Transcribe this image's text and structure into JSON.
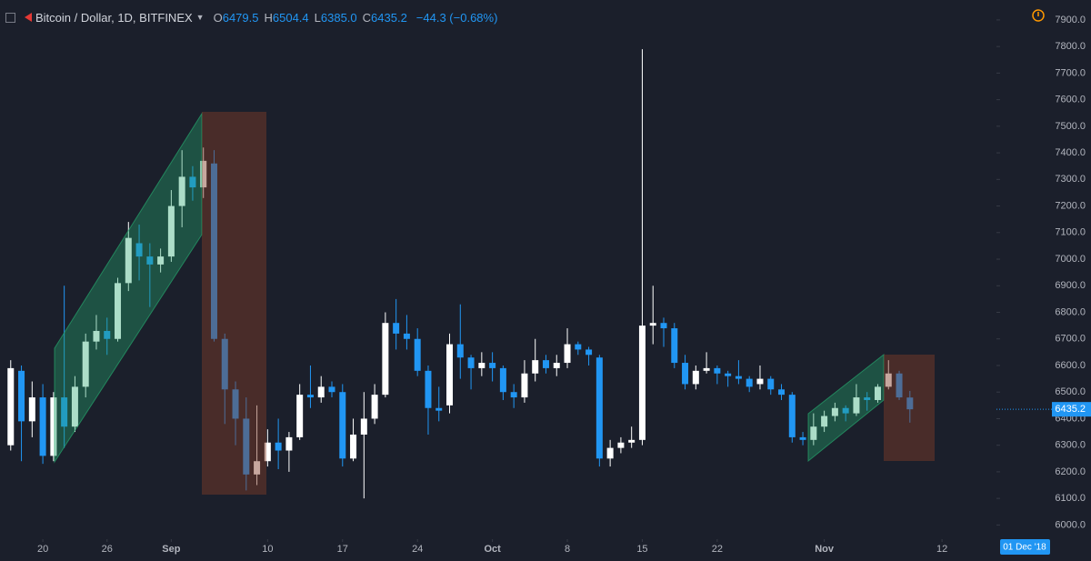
{
  "header": {
    "symbol": "Bitcoin / Dollar, 1D, BITFINEX",
    "ohlc": [
      {
        "key": "O",
        "value": "6479.5"
      },
      {
        "key": "H",
        "value": "6504.4"
      },
      {
        "key": "L",
        "value": "6385.0"
      },
      {
        "key": "C",
        "value": "6435.2"
      }
    ],
    "change": "−44.3 (−0.68%)"
  },
  "chart_data": {
    "type": "candlestick",
    "x": [
      "2018-08-17",
      "2018-08-18",
      "2018-08-19",
      "2018-08-20",
      "2018-08-21",
      "2018-08-22",
      "2018-08-23",
      "2018-08-24",
      "2018-08-25",
      "2018-08-26",
      "2018-08-27",
      "2018-08-28",
      "2018-08-29",
      "2018-08-30",
      "2018-08-31",
      "2018-09-01",
      "2018-09-02",
      "2018-09-03",
      "2018-09-04",
      "2018-09-05",
      "2018-09-06",
      "2018-09-07",
      "2018-09-08",
      "2018-09-09",
      "2018-09-10",
      "2018-09-11",
      "2018-09-12",
      "2018-09-13",
      "2018-09-14",
      "2018-09-15",
      "2018-09-16",
      "2018-09-17",
      "2018-09-18",
      "2018-09-19",
      "2018-09-20",
      "2018-09-21",
      "2018-09-22",
      "2018-09-23",
      "2018-09-24",
      "2018-09-25",
      "2018-09-26",
      "2018-09-27",
      "2018-09-28",
      "2018-09-29",
      "2018-09-30",
      "2018-10-01",
      "2018-10-02",
      "2018-10-03",
      "2018-10-04",
      "2018-10-05",
      "2018-10-06",
      "2018-10-07",
      "2018-10-08",
      "2018-10-09",
      "2018-10-10",
      "2018-10-11",
      "2018-10-12",
      "2018-10-13",
      "2018-10-14",
      "2018-10-15",
      "2018-10-16",
      "2018-10-17",
      "2018-10-18",
      "2018-10-19",
      "2018-10-20",
      "2018-10-21",
      "2018-10-22",
      "2018-10-23",
      "2018-10-24",
      "2018-10-25",
      "2018-10-26",
      "2018-10-27",
      "2018-10-28",
      "2018-10-29",
      "2018-10-30",
      "2018-10-31",
      "2018-11-01",
      "2018-11-02",
      "2018-11-03",
      "2018-11-04",
      "2018-11-05",
      "2018-11-06",
      "2018-11-07",
      "2018-11-08",
      "2018-11-09"
    ],
    "open": [
      6300,
      6580,
      6390,
      6480,
      6260,
      6480,
      6370,
      6520,
      6690,
      6730,
      6700,
      6910,
      7060,
      7010,
      6980,
      7010,
      7200,
      7310,
      7270,
      7360,
      6700,
      6510,
      6400,
      6190,
      6240,
      6310,
      6280,
      6330,
      6490,
      6480,
      6520,
      6500,
      6250,
      6340,
      6400,
      6490,
      6760,
      6720,
      6700,
      6580,
      6440,
      6450,
      6680,
      6630,
      6590,
      6610,
      6590,
      6500,
      6480,
      6570,
      6620,
      6590,
      6610,
      6680,
      6660,
      6630,
      6250,
      6290,
      6310,
      6320,
      6750,
      6760,
      6740,
      6610,
      6530,
      6580,
      6590,
      6570,
      6560,
      6550,
      6530,
      6550,
      6510,
      6490,
      6330,
      6320,
      6370,
      6410,
      6440,
      6420,
      6480,
      6470,
      6520,
      6570,
      6479.5
    ],
    "high": [
      6620,
      6600,
      6540,
      6530,
      6500,
      6900,
      6560,
      6720,
      6790,
      6780,
      6930,
      7140,
      7130,
      7060,
      7040,
      7260,
      7410,
      7350,
      7420,
      7410,
      6720,
      6540,
      6480,
      6450,
      6360,
      6400,
      6350,
      6530,
      6600,
      6560,
      6540,
      6530,
      6400,
      6500,
      6530,
      6800,
      6850,
      6790,
      6740,
      6600,
      6520,
      6720,
      6830,
      6640,
      6650,
      6650,
      6600,
      6530,
      6620,
      6700,
      6640,
      6640,
      6740,
      6690,
      6670,
      6640,
      6320,
      6330,
      6370,
      7790,
      6900,
      6780,
      6760,
      6640,
      6600,
      6650,
      6600,
      6580,
      6620,
      6560,
      6600,
      6560,
      6530,
      6500,
      6350,
      6420,
      6430,
      6460,
      6450,
      6530,
      6500,
      6530,
      6620,
      6580,
      6504.4
    ],
    "low": [
      6280,
      6240,
      6330,
      6230,
      6240,
      6290,
      6350,
      6480,
      6660,
      6640,
      6690,
      6880,
      6920,
      6820,
      6950,
      6990,
      7120,
      7220,
      7230,
      6690,
      6380,
      6300,
      6130,
      6150,
      6220,
      6210,
      6200,
      6320,
      6440,
      6460,
      6480,
      6220,
      6240,
      6100,
      6380,
      6480,
      6660,
      6660,
      6560,
      6340,
      6390,
      6420,
      6550,
      6510,
      6560,
      6540,
      6470,
      6440,
      6460,
      6540,
      6570,
      6560,
      6590,
      6640,
      6600,
      6220,
      6220,
      6270,
      6290,
      6300,
      6680,
      6670,
      6590,
      6510,
      6510,
      6570,
      6530,
      6520,
      6530,
      6500,
      6510,
      6490,
      6470,
      6310,
      6300,
      6300,
      6350,
      6390,
      6390,
      6410,
      6430,
      6460,
      6510,
      6470,
      6385.0
    ],
    "close": [
      6590,
      6390,
      6480,
      6260,
      6480,
      6370,
      6520,
      6690,
      6730,
      6700,
      6910,
      7080,
      7010,
      6980,
      7010,
      7200,
      7310,
      7270,
      7370,
      6700,
      6510,
      6400,
      6190,
      6240,
      6310,
      6280,
      6330,
      6490,
      6480,
      6520,
      6500,
      6250,
      6340,
      6400,
      6490,
      6760,
      6720,
      6700,
      6580,
      6440,
      6430,
      6680,
      6630,
      6590,
      6610,
      6590,
      6500,
      6480,
      6570,
      6620,
      6590,
      6610,
      6680,
      6660,
      6640,
      6250,
      6290,
      6310,
      6320,
      6750,
      6760,
      6740,
      6610,
      6530,
      6580,
      6590,
      6570,
      6560,
      6550,
      6520,
      6550,
      6510,
      6490,
      6330,
      6320,
      6370,
      6410,
      6440,
      6420,
      6480,
      6470,
      6520,
      6570,
      6480,
      6435.2
    ],
    "up_color": "#ffffff",
    "down_color": "#2196f3",
    "xlim": [
      "2018-08-16",
      "2018-11-17"
    ],
    "xticks": [
      {
        "value": "2018-08-20",
        "label": "20"
      },
      {
        "value": "2018-08-26",
        "label": "26"
      },
      {
        "value": "2018-09-01",
        "label": "Sep"
      },
      {
        "value": "2018-09-10",
        "label": "10"
      },
      {
        "value": "2018-09-17",
        "label": "17"
      },
      {
        "value": "2018-09-24",
        "label": "24"
      },
      {
        "value": "2018-10-01",
        "label": "Oct"
      },
      {
        "value": "2018-10-08",
        "label": "8"
      },
      {
        "value": "2018-10-15",
        "label": "15"
      },
      {
        "value": "2018-10-22",
        "label": "22"
      },
      {
        "value": "2018-11-01",
        "label": "Nov"
      },
      {
        "value": "2018-11-12",
        "label": "12"
      }
    ],
    "ylim": [
      5950,
      7975
    ],
    "yticks": [
      {
        "value": 6000,
        "label": "6000.0"
      },
      {
        "value": 6100,
        "label": "6100.0"
      },
      {
        "value": 6200,
        "label": "6200.0"
      },
      {
        "value": 6300,
        "label": "6300.0"
      },
      {
        "value": 6400,
        "label": "6400.0"
      },
      {
        "value": 6500,
        "label": "6500.0"
      },
      {
        "value": 6600,
        "label": "6600.0"
      },
      {
        "value": 6700,
        "label": "6700.0"
      },
      {
        "value": 6800,
        "label": "6800.0"
      },
      {
        "value": 6900,
        "label": "6900.0"
      },
      {
        "value": 7000,
        "label": "7000.0"
      },
      {
        "value": 7100,
        "label": "7100.0"
      },
      {
        "value": 7200,
        "label": "7200.0"
      },
      {
        "value": 7300,
        "label": "7300.0"
      },
      {
        "value": 7400,
        "label": "7400.0"
      },
      {
        "value": 7500,
        "label": "7500.0"
      },
      {
        "value": 7600,
        "label": "7600.0"
      },
      {
        "value": 7700,
        "label": "7700.0"
      },
      {
        "value": 7800,
        "label": "7800.0"
      },
      {
        "value": 7900,
        "label": "7900.0"
      }
    ],
    "last_price": {
      "value": 6435.2,
      "label": "6435.2"
    },
    "date_label": "01 Dec '18",
    "grid": false
  }
}
